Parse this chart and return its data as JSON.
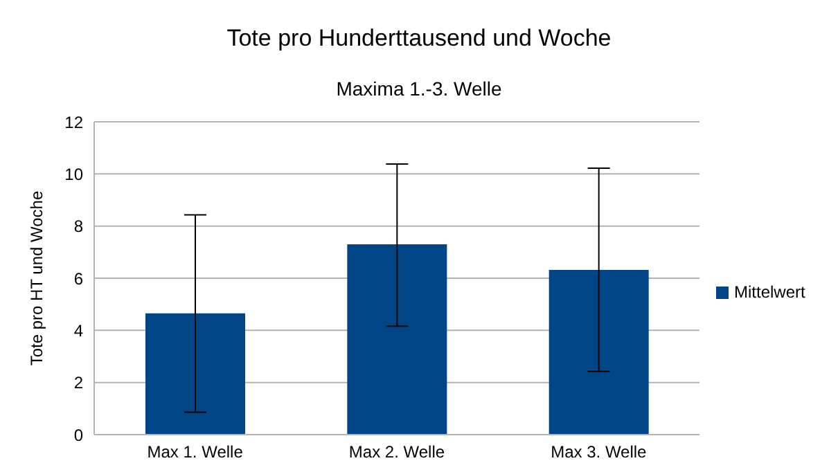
{
  "chart_data": {
    "type": "bar",
    "title": "Tote pro Hunderttausend und Woche",
    "subtitle": "Maxima 1.-3. Welle",
    "ylabel": "Tote pro HT und Woche",
    "categories": [
      "Max 1. Welle",
      "Max 2. Welle",
      "Max 3. Welle"
    ],
    "series": [
      {
        "name": "Mittelwert",
        "color": "#004586",
        "values": [
          4.65,
          7.3,
          6.32
        ],
        "errors": [
          [
            0.86,
            8.43
          ],
          [
            4.16,
            10.38
          ],
          [
            2.43,
            10.22
          ]
        ]
      }
    ],
    "ylim": [
      0,
      12
    ],
    "yticks": [
      0,
      2,
      4,
      6,
      8,
      10,
      12
    ],
    "grid": "y",
    "legend": "right"
  }
}
